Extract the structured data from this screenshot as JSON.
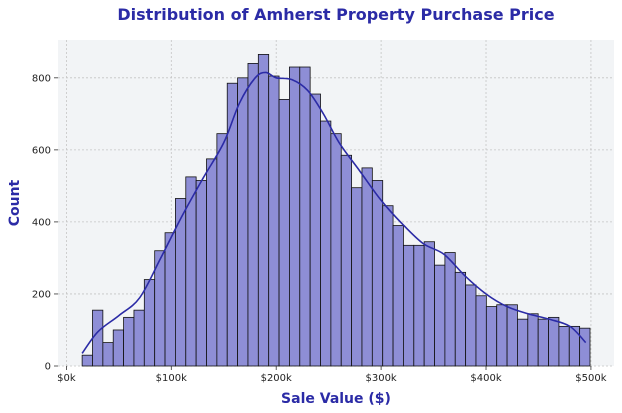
{
  "colors": {
    "title": "#2b2ba6",
    "axis_label": "#2b2ba6",
    "plot_bg": "#f2f4f6",
    "grid": "#c4c4c4",
    "bar_fill": "#8e8ed6",
    "bar_edge": "#111111",
    "kde_line": "#2b2ba6"
  },
  "chart_data": {
    "type": "bar",
    "title": "Distribution of Amherst Property Purchase Price",
    "xlabel": "Sale Value ($)",
    "ylabel": "Count",
    "xlim": [
      -8000,
      522000
    ],
    "ylim": [
      0,
      905
    ],
    "grid": true,
    "x_ticks": [
      0,
      100000,
      200000,
      300000,
      400000,
      500000
    ],
    "x_tick_labels": [
      "$0k",
      "$100k",
      "$200k",
      "$300k",
      "$400k",
      "$500k"
    ],
    "y_ticks": [
      0,
      200,
      400,
      600,
      800
    ],
    "y_tick_labels": [
      "0",
      "200",
      "400",
      "600",
      "800"
    ],
    "bin_start": 15000,
    "bin_width": 9880,
    "values": [
      30,
      155,
      65,
      100,
      135,
      155,
      240,
      320,
      370,
      465,
      525,
      515,
      575,
      645,
      785,
      800,
      840,
      865,
      805,
      740,
      830,
      830,
      755,
      680,
      645,
      585,
      495,
      550,
      515,
      445,
      390,
      335,
      335,
      345,
      280,
      315,
      260,
      225,
      195,
      165,
      170,
      170,
      130,
      145,
      130,
      135,
      110,
      110,
      105
    ],
    "kde": {
      "x": [
        15000,
        30000,
        50000,
        70000,
        90000,
        110000,
        130000,
        150000,
        165000,
        180000,
        190000,
        200000,
        215000,
        230000,
        245000,
        260000,
        280000,
        300000,
        320000,
        340000,
        360000,
        380000,
        400000,
        420000,
        440000,
        460000,
        480000,
        495000
      ],
      "y": [
        35,
        95,
        140,
        190,
        300,
        415,
        520,
        620,
        730,
        800,
        815,
        800,
        795,
        765,
        700,
        620,
        540,
        460,
        395,
        340,
        310,
        250,
        200,
        165,
        145,
        130,
        110,
        65
      ]
    }
  }
}
